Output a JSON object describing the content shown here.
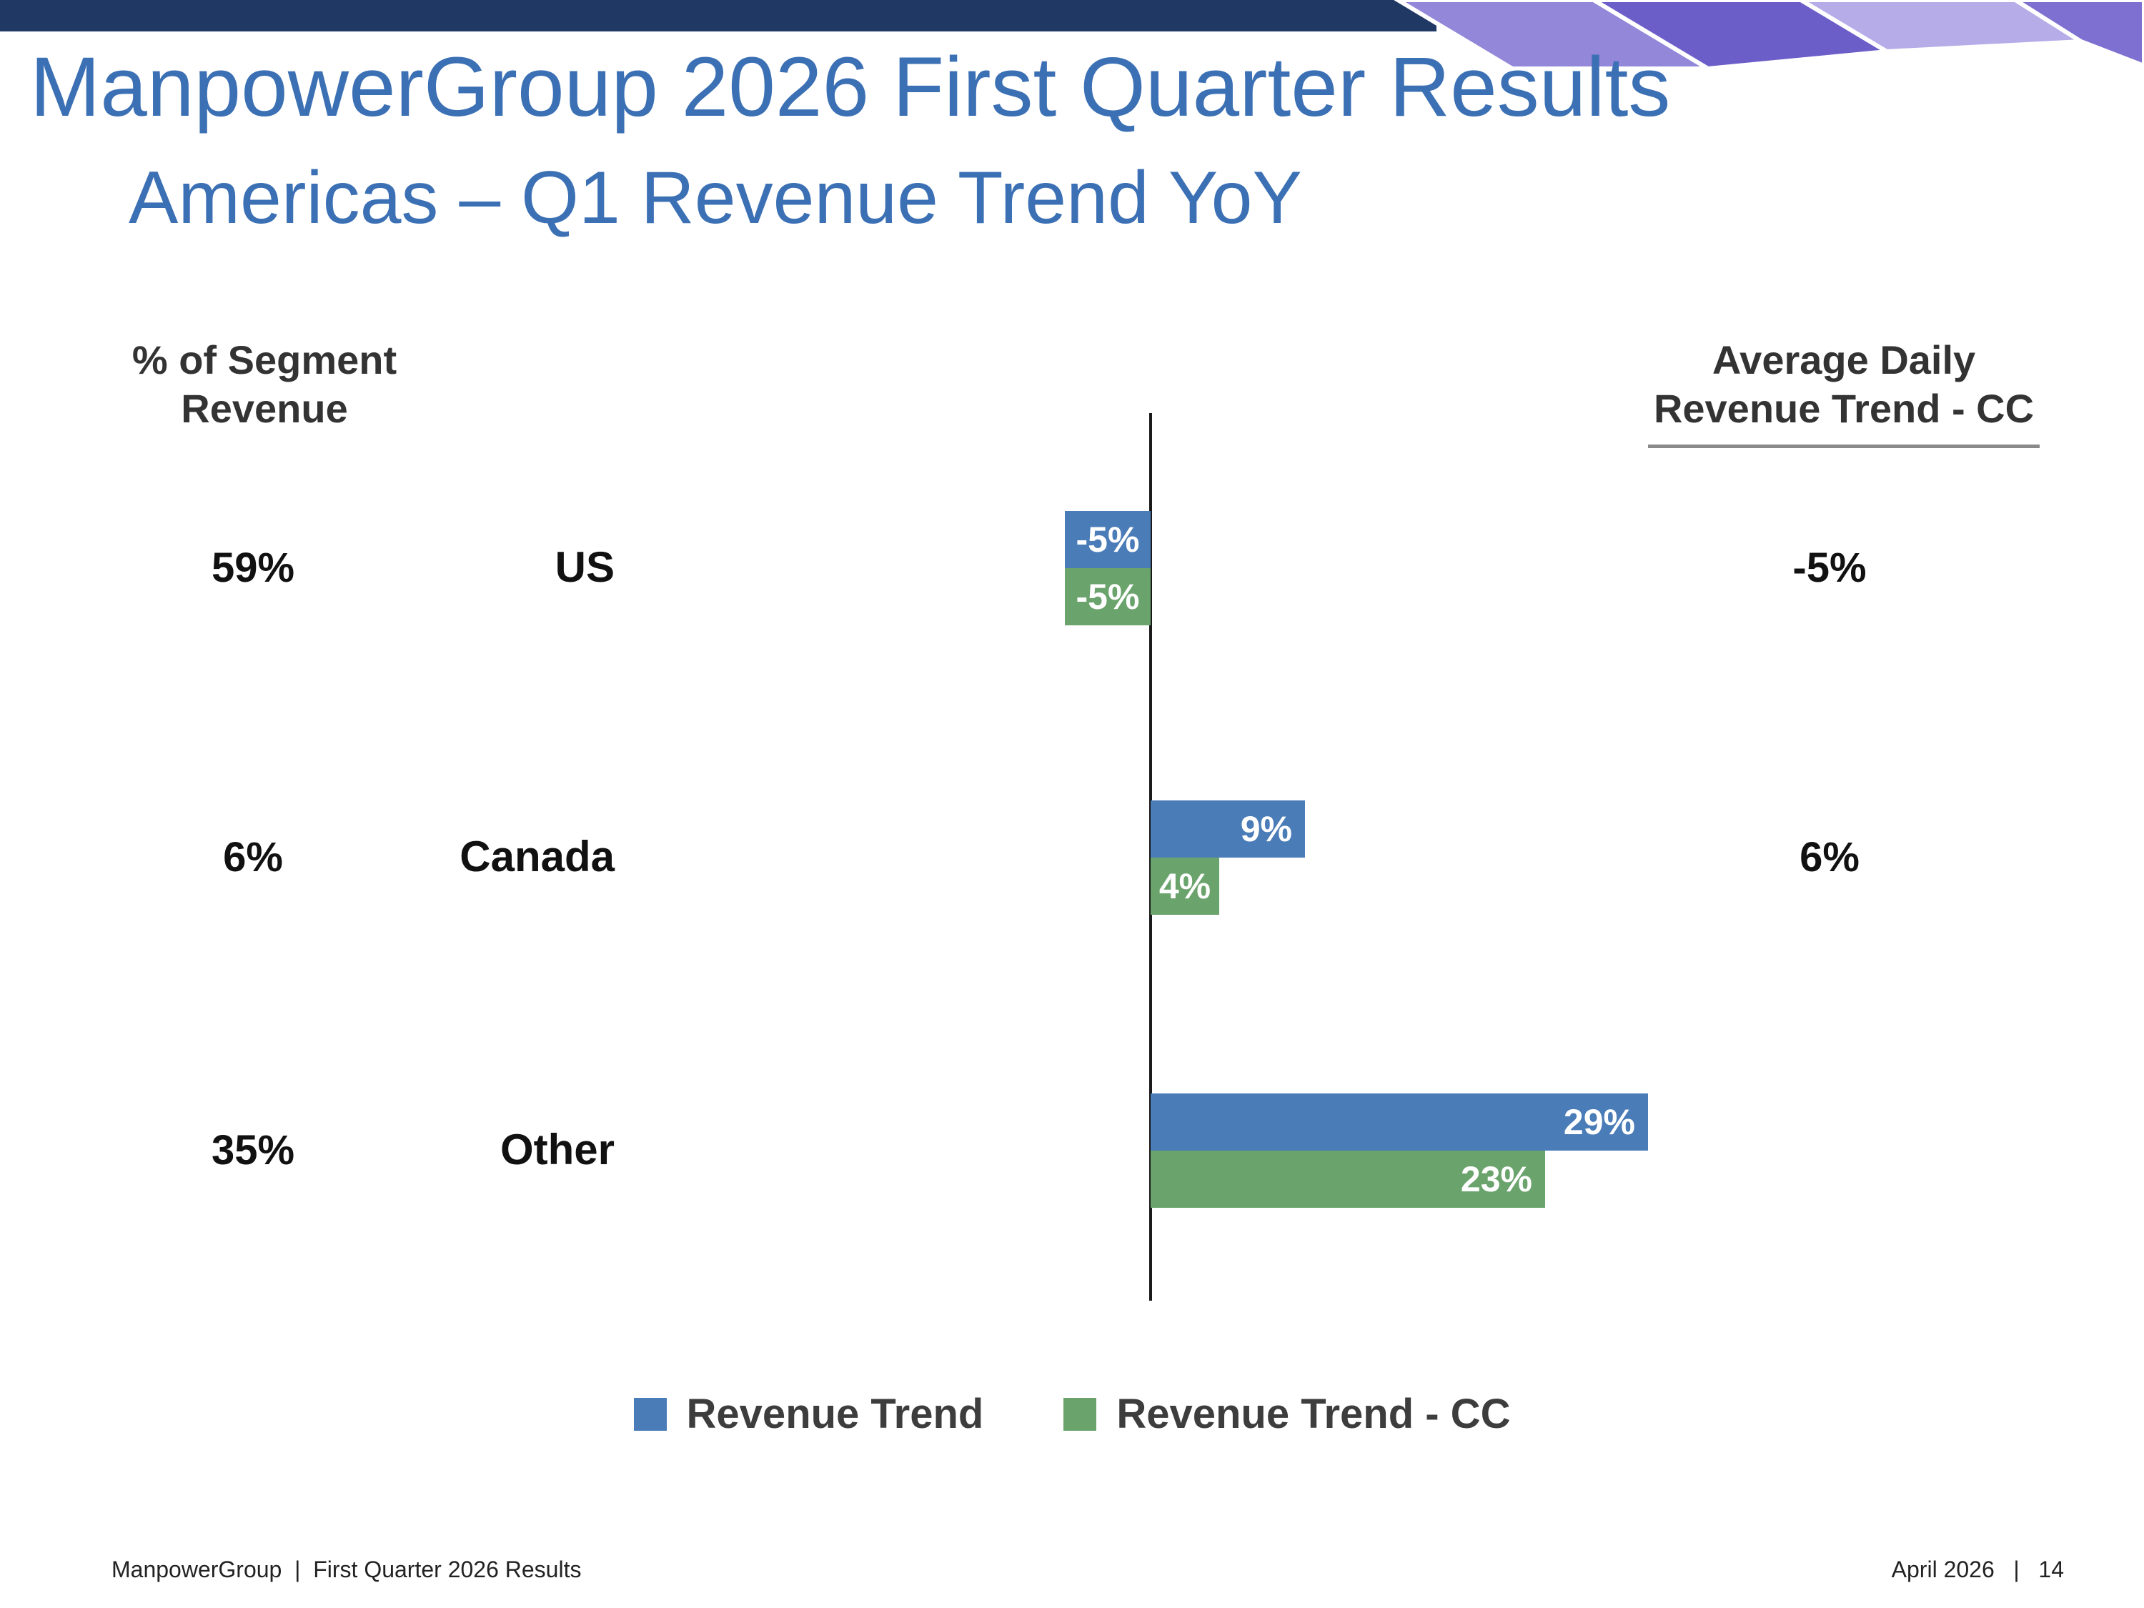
{
  "slide": {
    "title": "ManpowerGroup 2026 First Quarter Results",
    "subtitle": "Americas – Q1 Revenue Trend YoY"
  },
  "headers": {
    "segment_line1": "% of Segment",
    "segment_line2": "Revenue",
    "adr_line1": "Average Daily",
    "adr_line2": "Revenue Trend - CC"
  },
  "chart_data": {
    "type": "bar",
    "orientation": "horizontal",
    "categories": [
      "US",
      "Canada",
      "Other"
    ],
    "series": [
      {
        "name": "Revenue Trend",
        "color": "#4A7CB8",
        "values": [
          -5,
          9,
          29
        ],
        "labels": [
          "-5%",
          "9%",
          "29%"
        ]
      },
      {
        "name": "Revenue Trend - CC",
        "color": "#6AA36C",
        "values": [
          -5,
          4,
          23
        ],
        "labels": [
          "-5%",
          "4%",
          "23%"
        ]
      }
    ],
    "segment_revenue_pct": [
      "59%",
      "6%",
      "35%"
    ],
    "avg_daily_revenue_trend_cc": [
      "-5%",
      "6%",
      ""
    ],
    "unit": "%",
    "zero_axis_line": true,
    "legend_position": "bottom"
  },
  "footer": {
    "left": "ManpowerGroup  |  First Quarter 2026 Results",
    "right": "April 2026   |   14"
  },
  "colors": {
    "title_blue": "#3C70B4",
    "bar_blue": "#4A7CB8",
    "bar_green": "#6AA36C",
    "banner_navy": "#1F3864",
    "banner_purples": [
      "#9287D9",
      "#6C5EC8",
      "#B5ACE8",
      "#7E70D0"
    ]
  }
}
